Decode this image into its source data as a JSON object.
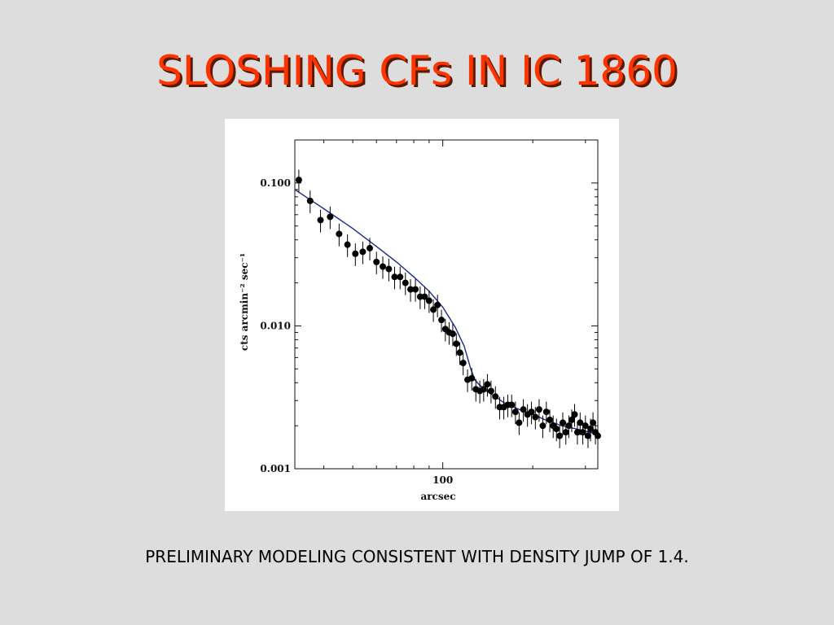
{
  "slide": {
    "title": "SLOSHING CFs IN IC 1860",
    "caption": "PRELIMINARY MODELING CONSISTENT WITH DENSITY JUMP OF 1.4."
  },
  "colors": {
    "background": "#dddddd",
    "title": "#ff3300",
    "model_line": "#1a2a8c",
    "points": "#000000"
  },
  "chart_data": {
    "type": "scatter",
    "title": "",
    "xlabel": "arcsec",
    "ylabel": "cts arcmin⁻² sec⁻¹",
    "xscale": "log",
    "yscale": "log",
    "xlim": [
      32,
      330
    ],
    "ylim": [
      0.001,
      0.2
    ],
    "x_tick_labels": [
      {
        "value": 100,
        "label": "100"
      }
    ],
    "y_tick_labels": [
      {
        "value": 0.001,
        "label": "0.001"
      },
      {
        "value": 0.01,
        "label": "0.010"
      },
      {
        "value": 0.1,
        "label": "0.100"
      }
    ],
    "grid": false,
    "legend": "none",
    "series": [
      {
        "kind": "points_with_errorbars",
        "x": [
          33,
          36,
          39,
          42,
          45,
          48,
          51,
          54,
          57,
          60,
          63,
          66,
          69,
          72,
          75,
          78,
          81,
          84,
          87,
          90,
          93,
          96,
          99,
          102,
          105,
          108,
          111,
          114,
          117,
          121,
          125,
          129,
          133,
          137,
          141,
          145,
          150,
          155,
          160,
          165,
          170,
          175,
          180,
          186,
          192,
          198,
          204,
          210,
          216,
          222,
          228,
          234,
          240,
          246,
          252,
          258,
          264,
          270,
          276,
          282,
          288,
          294,
          300,
          306,
          312,
          318,
          324,
          330
        ],
        "y": [
          0.105,
          0.075,
          0.055,
          0.058,
          0.044,
          0.037,
          0.032,
          0.033,
          0.035,
          0.028,
          0.026,
          0.025,
          0.022,
          0.022,
          0.02,
          0.018,
          0.018,
          0.016,
          0.016,
          0.015,
          0.013,
          0.014,
          0.011,
          0.0095,
          0.009,
          0.0088,
          0.0075,
          0.0065,
          0.0055,
          0.0042,
          0.0043,
          0.0036,
          0.0035,
          0.0036,
          0.0039,
          0.0035,
          0.0032,
          0.0027,
          0.0027,
          0.0028,
          0.0028,
          0.0025,
          0.0021,
          0.0026,
          0.0024,
          0.0025,
          0.0023,
          0.0026,
          0.002,
          0.0025,
          0.0022,
          0.002,
          0.0019,
          0.0017,
          0.0021,
          0.0018,
          0.002,
          0.0022,
          0.0024,
          0.0018,
          0.0021,
          0.0018,
          0.002,
          0.0017,
          0.0019,
          0.0021,
          0.0018,
          0.0017
        ],
        "yerr_frac": 0.18
      },
      {
        "kind": "model_line",
        "x": [
          32,
          40,
          50,
          60,
          70,
          80,
          90,
          100,
          110,
          118,
          124,
          128,
          132,
          140,
          150,
          160,
          180,
          200,
          220,
          250,
          280,
          310,
          330
        ],
        "y": [
          0.09,
          0.066,
          0.048,
          0.036,
          0.028,
          0.022,
          0.0175,
          0.0135,
          0.0098,
          0.0072,
          0.005,
          0.0042,
          0.0039,
          0.0035,
          0.0032,
          0.0029,
          0.0026,
          0.0024,
          0.0022,
          0.002,
          0.0019,
          0.0018,
          0.00175
        ]
      }
    ]
  }
}
